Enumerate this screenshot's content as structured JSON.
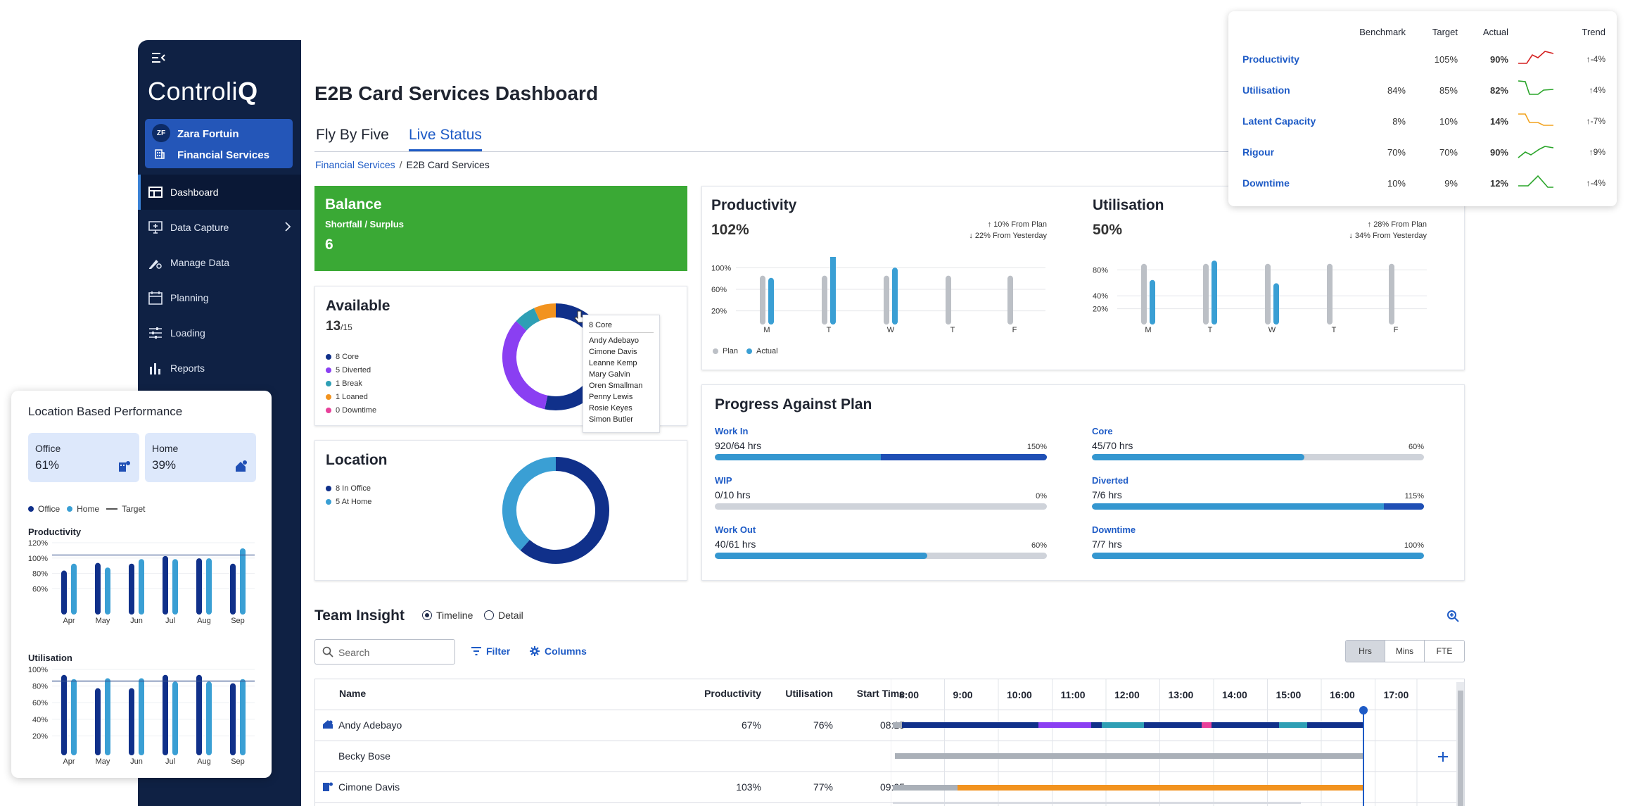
{
  "sidebar": {
    "logo_light": "Controli",
    "logo_bold": "Q",
    "user_initials": "ZF",
    "user_name": "Zara Fortuin",
    "org_name": "Financial Services",
    "items": [
      {
        "label": "Dashboard",
        "icon": "dashboard-icon"
      },
      {
        "label": "Data Capture",
        "icon": "monitor-icon"
      },
      {
        "label": "Manage Data",
        "icon": "pen-gear-icon"
      },
      {
        "label": "Planning",
        "icon": "calendar-icon"
      },
      {
        "label": "Loading",
        "icon": "sliders-icon"
      },
      {
        "label": "Reports",
        "icon": "bar-chart-icon"
      }
    ]
  },
  "header": {
    "title": "E2B Card Services Dashboard",
    "tabs": [
      "Fly By Five",
      "Live Status"
    ],
    "breadcrumb": [
      "Financial Services",
      "E2B Card Services"
    ]
  },
  "balance": {
    "title": "Balance",
    "subtitle": "Shortfall / Surplus",
    "value": "6"
  },
  "available": {
    "title": "Available",
    "value": "13",
    "total": "/15",
    "legend": [
      {
        "label": "8 Core",
        "color": "#10308a",
        "value": 8
      },
      {
        "label": "5 Diverted",
        "color": "#8a3ff2",
        "value": 5
      },
      {
        "label": "1 Break",
        "color": "#2e9fb5",
        "value": 1
      },
      {
        "label": "1 Loaned",
        "color": "#f2931f",
        "value": 1
      },
      {
        "label": "0 Downtime",
        "color": "#e8409a",
        "value": 0
      }
    ],
    "tooltip": {
      "title": "8 Core",
      "names": [
        "Andy Adebayo",
        "Cimone Davis",
        "Leanne Kemp",
        "Mary Galvin",
        "Oren Smallman",
        "Penny Lewis",
        "Rosie Keyes",
        "Simon Butler"
      ]
    }
  },
  "location": {
    "title": "Location",
    "legend": [
      {
        "label": "8 In Office",
        "color": "#10308a",
        "value": 8
      },
      {
        "label": "5 At Home",
        "color": "#3a9fd4",
        "value": 5
      }
    ]
  },
  "productivity": {
    "title": "Productivity",
    "value": "102%",
    "deltas": [
      "10% From Plan",
      "22% From Yesterday"
    ],
    "legend": [
      "Plan",
      "Actual"
    ]
  },
  "utilisation": {
    "title": "Utilisation",
    "value": "50%",
    "deltas": [
      "28% From Plan",
      "34% From Yesterday"
    ]
  },
  "progress": {
    "title": "Progress Against Plan",
    "items": [
      {
        "label": "Work In",
        "value": "920/64 hrs",
        "pct": "150%",
        "fill": 1.0,
        "split": 0.5
      },
      {
        "label": "WIP",
        "value": "0/10 hrs",
        "pct": "0%",
        "fill": 0.0,
        "split": null
      },
      {
        "label": "Work Out",
        "value": "40/61 hrs",
        "pct": "60%",
        "fill": 0.64,
        "split": null
      },
      {
        "label": "Core",
        "value": "45/70 hrs",
        "pct": "60%",
        "fill": 0.64,
        "split": null
      },
      {
        "label": "Diverted",
        "value": "7/6 hrs",
        "pct": "115%",
        "fill": 1.0,
        "split": 0.88
      },
      {
        "label": "Downtime",
        "value": "7/7 hrs",
        "pct": "100%",
        "fill": 1.0,
        "split": null
      }
    ]
  },
  "team": {
    "title": "Team Insight",
    "view_options": [
      "Timeline",
      "Detail"
    ],
    "search_placeholder": "Search",
    "filter_label": "Filter",
    "columns_label": "Columns",
    "units": [
      "Hrs",
      "Mins",
      "FTE"
    ],
    "headers": [
      "Name",
      "Productivity",
      "Utilisation",
      "Start Time"
    ],
    "hours": [
      "8:00",
      "9:00",
      "10:00",
      "11:00",
      "12:00",
      "13:00",
      "14:00",
      "15:00",
      "16:00",
      "17:00"
    ],
    "rows": [
      {
        "name": "Andy Adebayo",
        "productivity": "67%",
        "utilisation": "76%",
        "start": "08:15",
        "icon": "home-location-icon"
      },
      {
        "name": "Becky Bose",
        "productivity": "",
        "utilisation": "",
        "start": "",
        "icon": ""
      },
      {
        "name": "Cimone Davis",
        "productivity": "103%",
        "utilisation": "77%",
        "start": "09:05",
        "icon": "office-location-icon"
      }
    ]
  },
  "metrics": {
    "headers": [
      "Benchmark",
      "Target",
      "Actual",
      "Trend"
    ],
    "rows": [
      {
        "name": "Productivity",
        "benchmark": "",
        "target": "105%",
        "actual": "90%",
        "trend": "-4%",
        "color": "#d42020"
      },
      {
        "name": "Utilisation",
        "benchmark": "84%",
        "target": "85%",
        "actual": "82%",
        "trend": "4%",
        "color": "#2aa52a"
      },
      {
        "name": "Latent Capacity",
        "benchmark": "8%",
        "target": "10%",
        "actual": "14%",
        "trend": "-7%",
        "color": "#f2a31f"
      },
      {
        "name": "Rigour",
        "benchmark": "70%",
        "target": "70%",
        "actual": "90%",
        "trend": "9%",
        "color": "#2aa52a"
      },
      {
        "name": "Downtime",
        "benchmark": "10%",
        "target": "9%",
        "actual": "12%",
        "trend": "-4%",
        "color": "#2aa52a"
      }
    ]
  },
  "location_panel": {
    "title": "Location Based Performance",
    "office_label": "Office",
    "office_value": "61%",
    "home_label": "Home",
    "home_value": "39%",
    "legend": [
      "Office",
      "Home",
      "Target"
    ],
    "productivity_title": "Productivity",
    "utilisation_title": "Utilisation"
  },
  "chart_data": [
    {
      "type": "bar",
      "title": "Productivity",
      "categories": [
        "M",
        "T",
        "W",
        "T",
        "F"
      ],
      "y_ticks": [
        "100%",
        "60%",
        "20%"
      ],
      "ylim": [
        0,
        120
      ],
      "series": [
        {
          "name": "Plan",
          "values": [
            80,
            80,
            80,
            80,
            80
          ]
        },
        {
          "name": "Actual",
          "values": [
            76,
            130,
            95,
            null,
            null
          ]
        }
      ]
    },
    {
      "type": "bar",
      "title": "Utilisation",
      "categories": [
        "M",
        "T",
        "W",
        "T",
        "F"
      ],
      "y_ticks": [
        "80%",
        "40%",
        "20%"
      ],
      "ylim": [
        0,
        100
      ],
      "series": [
        {
          "name": "Plan",
          "values": [
            85,
            85,
            85,
            85,
            85
          ]
        },
        {
          "name": "Actual",
          "values": [
            60,
            90,
            55,
            null,
            null
          ]
        }
      ]
    },
    {
      "type": "bar",
      "title": "Productivity",
      "categories": [
        "Apr",
        "May",
        "Jun",
        "Jul",
        "Aug",
        "Sep"
      ],
      "y_ticks": [
        "120%",
        "100%",
        "80%",
        "60%"
      ],
      "ylim": [
        30,
        120
      ],
      "target": 104,
      "series": [
        {
          "name": "Office",
          "values": [
            80,
            90,
            89,
            99,
            96,
            89
          ]
        },
        {
          "name": "Home",
          "values": [
            89,
            84,
            95,
            95,
            96,
            109
          ]
        }
      ]
    },
    {
      "type": "bar",
      "title": "Utilisation",
      "categories": [
        "Apr",
        "May",
        "Jun",
        "Jul",
        "Aug",
        "Sep"
      ],
      "y_ticks": [
        "100%",
        "80%",
        "60%",
        "40%",
        "20%"
      ],
      "ylim": [
        0,
        100
      ],
      "target": 86,
      "series": [
        {
          "name": "Office",
          "values": [
            90,
            74,
            74,
            90,
            90,
            80
          ]
        },
        {
          "name": "Home",
          "values": [
            85,
            86,
            86,
            82,
            82,
            85
          ]
        }
      ]
    }
  ]
}
